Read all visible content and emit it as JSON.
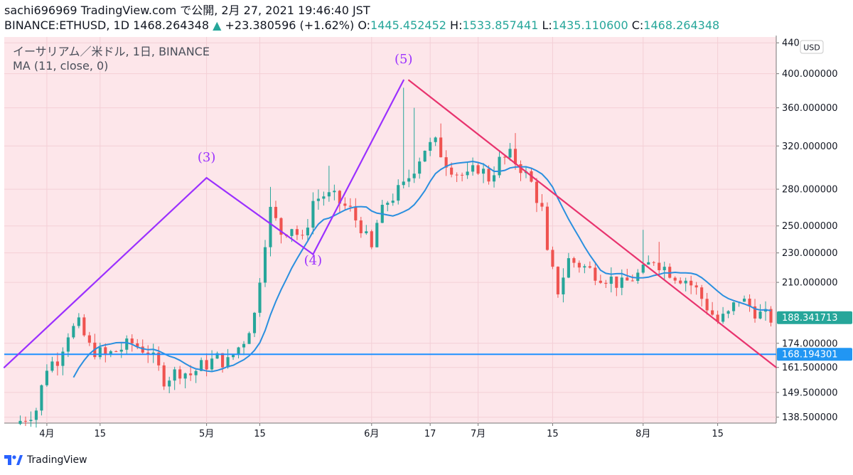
{
  "header": {
    "publish_line": "sachi696969 TradingView.com で公開, 2月 27, 2021 19:46:40 JST",
    "symbol": "BINANCE:ETHUSD, 1D",
    "last": "1468.264348",
    "change_arrow": "▲",
    "change": "+23.380596 (+1.62%)",
    "o_label": "O:",
    "o_value": "1445.452452",
    "h_label": "H:",
    "h_value": "1533.857441",
    "l_label": "L:",
    "l_value": "1435.110600",
    "c_label": "C:",
    "c_value": "1468.264348"
  },
  "legend": {
    "title": "イーサリアム／米ドル, 1日, BINANCE",
    "indicator": "MA (11, close, 0)"
  },
  "currency_button": "USD",
  "footer": {
    "brand": "TradingView"
  },
  "colors": {
    "background": "#fde6ea",
    "up": "#26a69a",
    "down": "#ef5350",
    "ma": "#2a8fdf",
    "wave_up": "#9b30ff",
    "wave_down": "#e8336e",
    "support": "#1e90ff"
  },
  "chart_data": {
    "type": "candlestick",
    "y_scale": "log",
    "ylim": [
      136,
      448
    ],
    "y_ticks": [
      {
        "label": "440",
        "value": 440
      },
      {
        "label": "400.000000",
        "value": 400
      },
      {
        "label": "360.000000",
        "value": 360
      },
      {
        "label": "320.000000",
        "value": 320
      },
      {
        "label": "280.000000",
        "value": 280
      },
      {
        "label": "250.000000",
        "value": 250
      },
      {
        "label": "230.000000",
        "value": 230
      },
      {
        "label": "210.000000",
        "value": 210
      },
      {
        "label": "188.341713",
        "value": 188.341713,
        "badge": true,
        "badge_color": "#26a69a"
      },
      {
        "label": "174.000000",
        "value": 174
      },
      {
        "label": "168.194301",
        "value": 168.194301,
        "badge": true,
        "badge_color": "#2196f3"
      },
      {
        "label": "161.500000",
        "value": 161.5
      },
      {
        "label": "149.500000",
        "value": 149.5
      },
      {
        "label": "138.500000",
        "value": 138.5
      }
    ],
    "x_ticks": [
      {
        "label": "4月",
        "day": 5
      },
      {
        "label": "15",
        "day": 15
      },
      {
        "label": "5月",
        "day": 35
      },
      {
        "label": "15",
        "day": 45
      },
      {
        "label": "6月",
        "day": 66
      },
      {
        "label": "17",
        "day": 77
      },
      {
        "label": "7月",
        "day": 86
      },
      {
        "label": "15",
        "day": 100
      },
      {
        "label": "8月",
        "day": 117
      },
      {
        "label": "15",
        "day": 131
      }
    ],
    "x_range": [
      -3,
      142
    ],
    "ma_period": 11,
    "waves": [
      {
        "name": "wave-up-3",
        "color": "wave_up",
        "points": [
          [
            -3,
            161.5
          ],
          [
            35,
            290
          ]
        ],
        "label": "(3)",
        "label_at": [
          35,
          305
        ]
      },
      {
        "name": "wave-down-4",
        "color": "wave_up",
        "points": [
          [
            35,
            290
          ],
          [
            55,
            229
          ]
        ],
        "label": "(4)",
        "label_at": [
          55,
          222
        ]
      },
      {
        "name": "wave-up-5",
        "color": "wave_up",
        "points": [
          [
            55,
            229
          ],
          [
            72,
            392
          ]
        ],
        "label": "(5)",
        "label_at": [
          72,
          413
        ]
      },
      {
        "name": "down-trend",
        "color": "wave_down",
        "points": [
          [
            73,
            392
          ],
          [
            142,
            161.5
          ]
        ]
      }
    ],
    "support_line": {
      "value": 168.194301
    },
    "anchors": [
      [
        0,
        137
      ],
      [
        3,
        142
      ],
      [
        5,
        162
      ],
      [
        7,
        166
      ],
      [
        9,
        180
      ],
      [
        11,
        184
      ],
      [
        13,
        172
      ],
      [
        16,
        167
      ],
      [
        18,
        170
      ],
      [
        21,
        174
      ],
      [
        24,
        170
      ],
      [
        27,
        156
      ],
      [
        30,
        160
      ],
      [
        32,
        158
      ],
      [
        34,
        162
      ],
      [
        37,
        166
      ],
      [
        39,
        164
      ],
      [
        42,
        176
      ],
      [
        44,
        190
      ],
      [
        45,
        214
      ],
      [
        46,
        240
      ],
      [
        47,
        262
      ],
      [
        49,
        245
      ],
      [
        51,
        250
      ],
      [
        53,
        238
      ],
      [
        55,
        270
      ],
      [
        57,
        275
      ],
      [
        59,
        272
      ],
      [
        62,
        262
      ],
      [
        63,
        255
      ],
      [
        64,
        250
      ],
      [
        65,
        240
      ],
      [
        66,
        232
      ],
      [
        67,
        252
      ],
      [
        69,
        270
      ],
      [
        72,
        282
      ],
      [
        74,
        300
      ],
      [
        76,
        318
      ],
      [
        78,
        322
      ],
      [
        80,
        305
      ],
      [
        82,
        295
      ],
      [
        84,
        290
      ],
      [
        86,
        300
      ],
      [
        88,
        290
      ],
      [
        90,
        305
      ],
      [
        92,
        310
      ],
      [
        94,
        300
      ],
      [
        96,
        285
      ],
      [
        98,
        262
      ],
      [
        99,
        228
      ],
      [
        101,
        205
      ],
      [
        103,
        225
      ],
      [
        105,
        222
      ],
      [
        107,
        218
      ],
      [
        109,
        215
      ],
      [
        111,
        212
      ],
      [
        113,
        208
      ],
      [
        115,
        213
      ],
      [
        117,
        217
      ],
      [
        119,
        226
      ],
      [
        121,
        220
      ],
      [
        123,
        215
      ],
      [
        125,
        212
      ],
      [
        127,
        205
      ],
      [
        129,
        195
      ],
      [
        131,
        186
      ],
      [
        133,
        190
      ],
      [
        135,
        200
      ],
      [
        137,
        195
      ],
      [
        139,
        190
      ],
      [
        141,
        188
      ]
    ],
    "spikes": [
      [
        47,
        282
      ],
      [
        58,
        301
      ],
      [
        72,
        383
      ],
      [
        74,
        360
      ],
      [
        79,
        343
      ],
      [
        93,
        333
      ],
      [
        117,
        247
      ],
      [
        120,
        238
      ]
    ]
  }
}
